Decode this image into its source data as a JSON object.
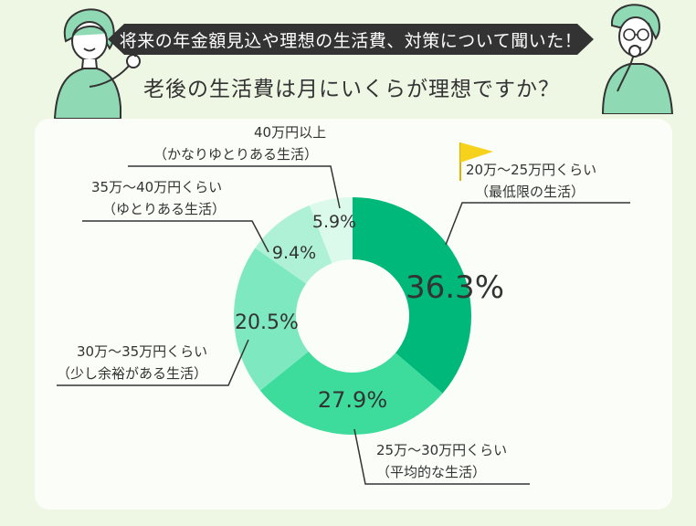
{
  "banner": {
    "text": "将来の年金額見込や理想の生活費、対策について聞いた！"
  },
  "headline": {
    "text": "老後の生活費は月にいくらが理想ですか？"
  },
  "chart_data": {
    "type": "pie",
    "title": "老後の生活費は月にいくらが理想ですか？",
    "slices": [
      {
        "label_line1": "20万〜25万円くらい",
        "label_line2": "（最低限の生活）",
        "value": 36.3,
        "value_label": "36.3%",
        "color": "#00b87a"
      },
      {
        "label_line1": "25万〜30万円くらい",
        "label_line2": "（平均的な生活）",
        "value": 27.9,
        "value_label": "27.9%",
        "color": "#3ddc9c"
      },
      {
        "label_line1": "30万〜35万円くらい",
        "label_line2": "（少し余裕がある生活）",
        "value": 20.5,
        "value_label": "20.5%",
        "color": "#7ee8c0"
      },
      {
        "label_line1": "35万〜40万円くらい",
        "label_line2": "（ゆとりある生活）",
        "value": 9.4,
        "value_label": "9.4%",
        "color": "#aef1d6"
      },
      {
        "label_line1": "40万円以上",
        "label_line2": "（かなりゆとりある生活）",
        "value": 5.9,
        "value_label": "5.9%",
        "color": "#dcfaec"
      }
    ]
  },
  "colors": {
    "background": "#eef7e4",
    "panel": "#fbfdf8",
    "banner": "#333333",
    "flag": "#f7d21c",
    "person_accent": "#8fd9b4"
  }
}
